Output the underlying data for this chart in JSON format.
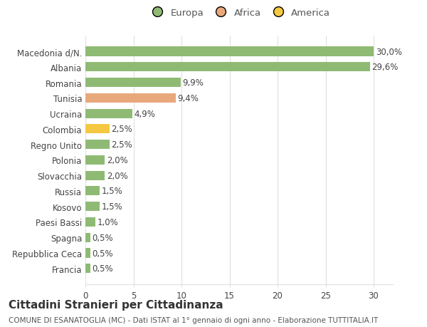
{
  "categories": [
    "Francia",
    "Repubblica Ceca",
    "Spagna",
    "Paesi Bassi",
    "Kosovo",
    "Russia",
    "Slovacchia",
    "Polonia",
    "Regno Unito",
    "Colombia",
    "Ucraina",
    "Tunisia",
    "Romania",
    "Albania",
    "Macedonia d/N."
  ],
  "values": [
    0.5,
    0.5,
    0.5,
    1.0,
    1.5,
    1.5,
    2.0,
    2.0,
    2.5,
    2.5,
    4.9,
    9.4,
    9.9,
    29.6,
    30.0
  ],
  "labels": [
    "0,5%",
    "0,5%",
    "0,5%",
    "1,0%",
    "1,5%",
    "1,5%",
    "2,0%",
    "2,0%",
    "2,5%",
    "2,5%",
    "4,9%",
    "9,4%",
    "9,9%",
    "29,6%",
    "30,0%"
  ],
  "colors": [
    "#8fba74",
    "#8fba74",
    "#8fba74",
    "#8fba74",
    "#8fba74",
    "#8fba74",
    "#8fba74",
    "#8fba74",
    "#8fba74",
    "#f5c842",
    "#8fba74",
    "#e8a87c",
    "#8fba74",
    "#8fba74",
    "#8fba74"
  ],
  "legend": [
    {
      "label": "Europa",
      "color": "#8fba74"
    },
    {
      "label": "Africa",
      "color": "#e8a87c"
    },
    {
      "label": "America",
      "color": "#f5c842"
    }
  ],
  "title": "Cittadini Stranieri per Cittadinanza",
  "subtitle": "COMUNE DI ESANATOGLIA (MC) - Dati ISTAT al 1° gennaio di ogni anno - Elaborazione TUTTITALIA.IT",
  "xlim": [
    0,
    32
  ],
  "xticks": [
    0,
    5,
    10,
    15,
    20,
    25,
    30
  ],
  "bg_color": "#ffffff",
  "grid_color": "#e0e0e0",
  "bar_height": 0.6,
  "title_fontsize": 11,
  "subtitle_fontsize": 7.5,
  "label_fontsize": 8.5,
  "tick_fontsize": 8.5,
  "legend_fontsize": 9.5
}
